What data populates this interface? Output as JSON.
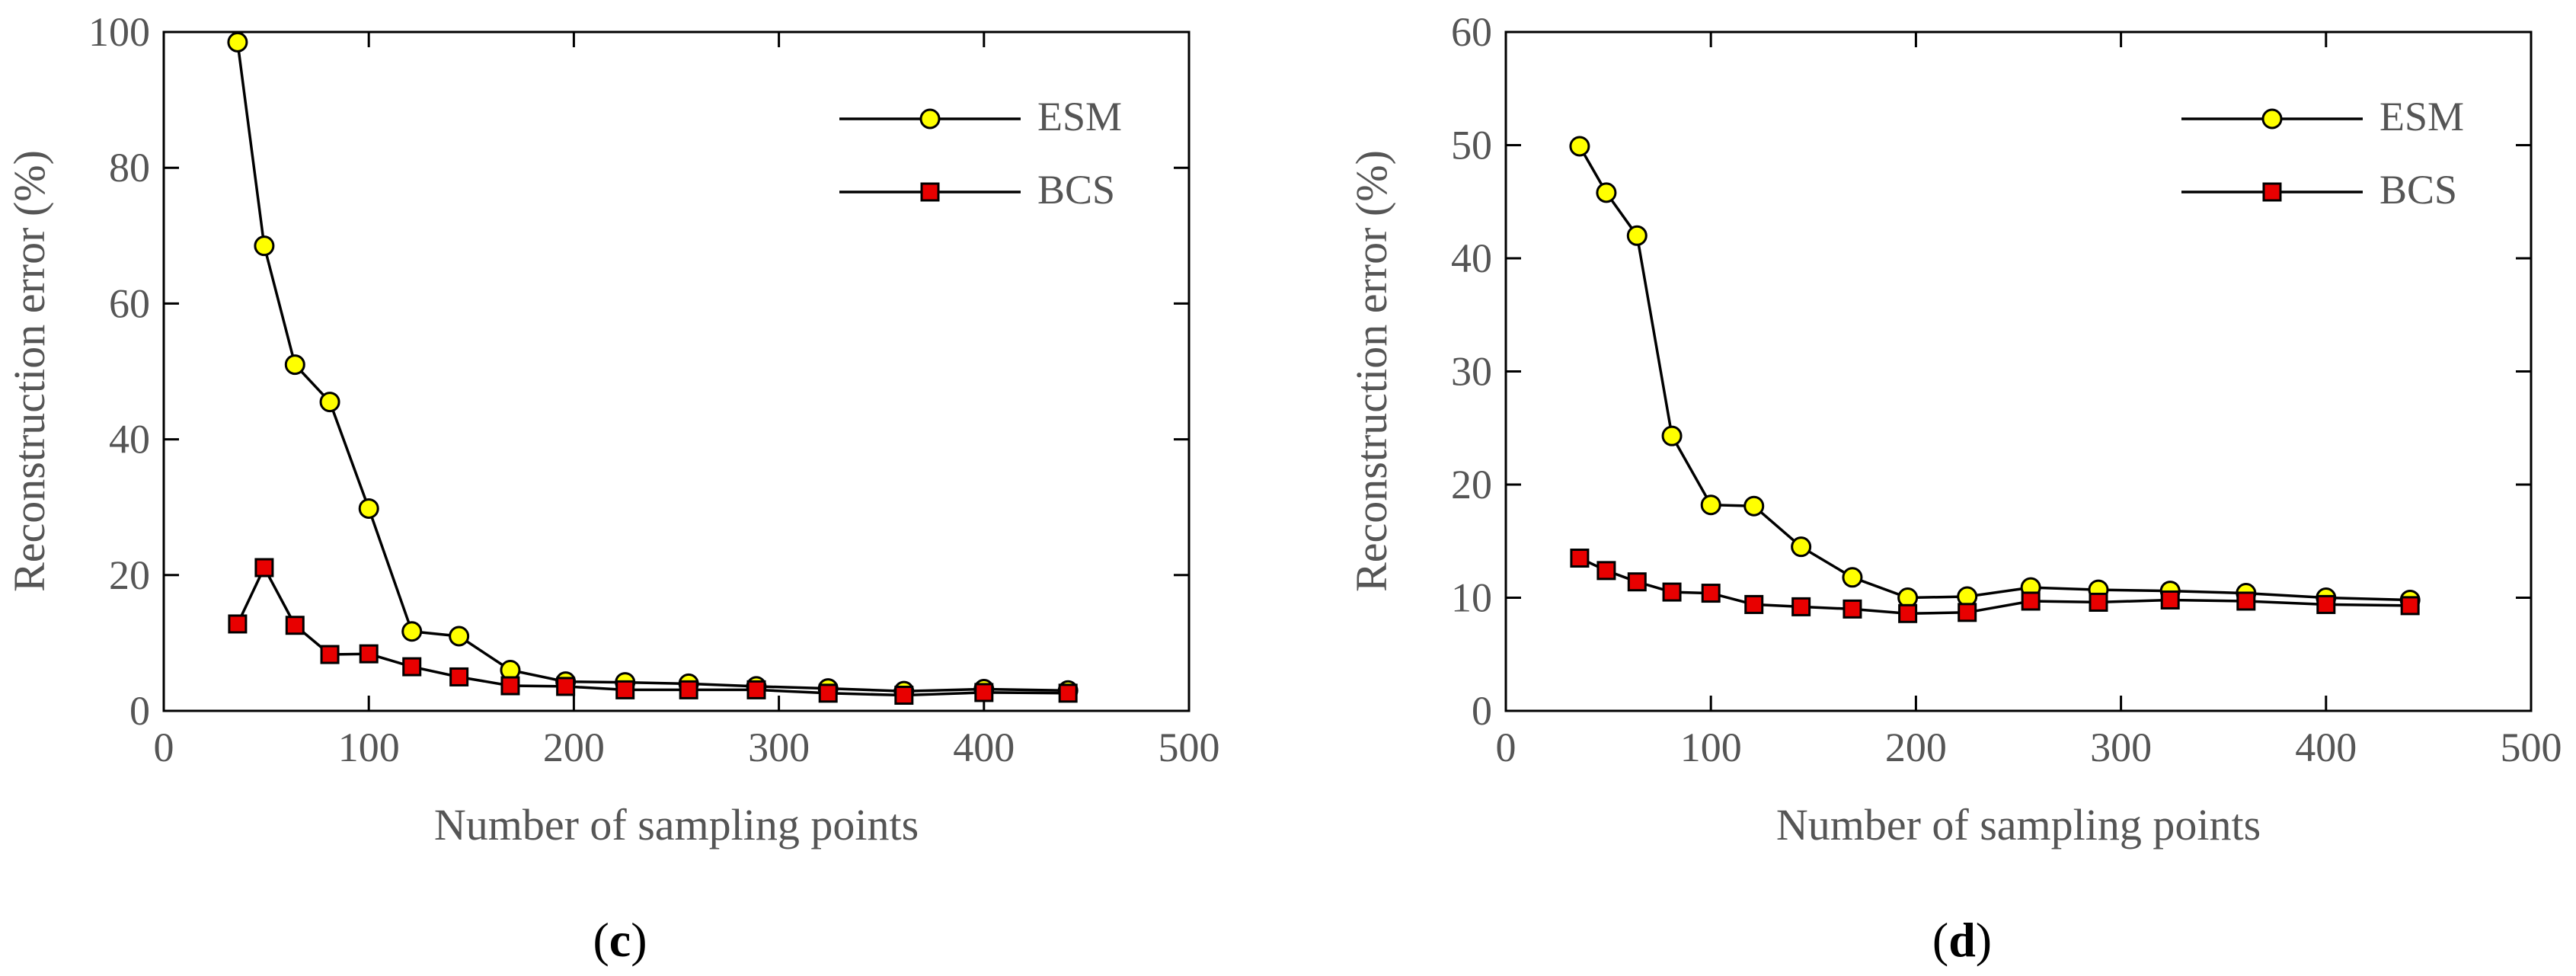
{
  "chart_data": [
    {
      "type": "line",
      "panel_label": "(c)",
      "panel_letter": "c",
      "xlabel": "Number of sampling points",
      "ylabel": "Reconstruction error (%)",
      "xlim": [
        0,
        500
      ],
      "ylim": [
        0,
        100
      ],
      "xticks": [
        0,
        100,
        200,
        300,
        400,
        500
      ],
      "yticks": [
        0,
        20,
        40,
        60,
        80,
        100
      ],
      "grid": false,
      "legend_position": "top-right",
      "x": [
        36,
        49,
        64,
        81,
        100,
        121,
        144,
        169,
        196,
        225,
        256,
        289,
        324,
        361,
        400,
        441
      ],
      "series": [
        {
          "name": "ESM",
          "marker": "circle",
          "color": "#ffff00",
          "values": [
            98.5,
            68.5,
            51,
            45.5,
            29.8,
            11.7,
            11,
            6,
            4.3,
            4.2,
            4,
            3.6,
            3.3,
            2.9,
            3.2,
            3
          ]
        },
        {
          "name": "BCS",
          "marker": "square",
          "color": "#e80000",
          "values": [
            12.8,
            21.1,
            12.6,
            8.3,
            8.4,
            6.5,
            5,
            3.7,
            3.6,
            3.1,
            3.1,
            3.1,
            2.6,
            2.3,
            2.7,
            2.6
          ]
        }
      ]
    },
    {
      "type": "line",
      "panel_label": "(d)",
      "panel_letter": "d",
      "xlabel": "Number of sampling points",
      "ylabel": "Reconstruction error (%)",
      "xlim": [
        0,
        500
      ],
      "ylim": [
        0,
        60
      ],
      "xticks": [
        0,
        100,
        200,
        300,
        400,
        500
      ],
      "yticks": [
        0,
        10,
        20,
        30,
        40,
        50,
        60
      ],
      "grid": false,
      "legend_position": "top-right",
      "x": [
        36,
        49,
        64,
        81,
        100,
        121,
        144,
        169,
        196,
        225,
        256,
        289,
        324,
        361,
        400,
        441
      ],
      "series": [
        {
          "name": "ESM",
          "marker": "circle",
          "color": "#ffff00",
          "values": [
            49.9,
            45.8,
            42,
            24.3,
            18.2,
            18.1,
            14.5,
            11.8,
            10,
            10.1,
            10.9,
            10.7,
            10.6,
            10.4,
            10,
            9.8
          ]
        },
        {
          "name": "BCS",
          "marker": "square",
          "color": "#e80000",
          "values": [
            13.5,
            12.4,
            11.4,
            10.5,
            10.4,
            9.4,
            9.2,
            9,
            8.6,
            8.7,
            9.7,
            9.6,
            9.8,
            9.7,
            9.4,
            9.3
          ]
        }
      ]
    }
  ]
}
